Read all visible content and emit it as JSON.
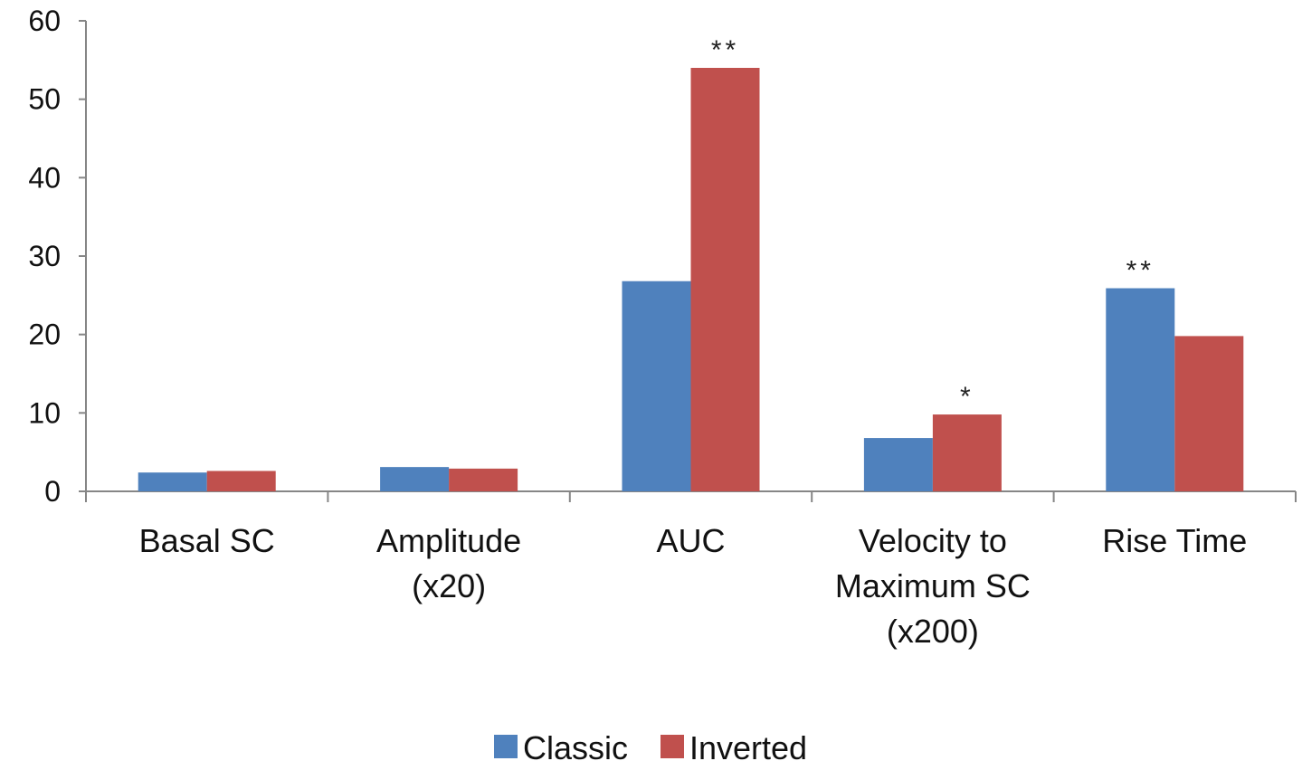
{
  "chart_data": {
    "type": "bar",
    "categories": [
      [
        "Basal SC"
      ],
      [
        "Amplitude",
        "(x20)"
      ],
      [
        "AUC"
      ],
      [
        "Velocity to",
        "Maximum SC",
        "(x200)"
      ],
      [
        "Rise Time"
      ]
    ],
    "series": [
      {
        "name": "Classic",
        "color": "#4f81bd",
        "values": [
          2.4,
          3.1,
          26.8,
          6.8,
          25.9
        ]
      },
      {
        "name": "Inverted",
        "color": "#c0504d",
        "values": [
          2.6,
          2.9,
          54.0,
          9.8,
          19.8
        ]
      }
    ],
    "annotations": [
      {
        "category_index": 2,
        "series": "Inverted",
        "text": "**"
      },
      {
        "category_index": 3,
        "series": "Inverted",
        "text": "*"
      },
      {
        "category_index": 4,
        "series": "Classic",
        "text": "**"
      }
    ],
    "ylim": [
      0,
      60
    ],
    "yticks": [
      0,
      10,
      20,
      30,
      40,
      50,
      60
    ],
    "title": "",
    "xlabel": "",
    "ylabel": "",
    "grid": false,
    "legend_position": "bottom"
  }
}
